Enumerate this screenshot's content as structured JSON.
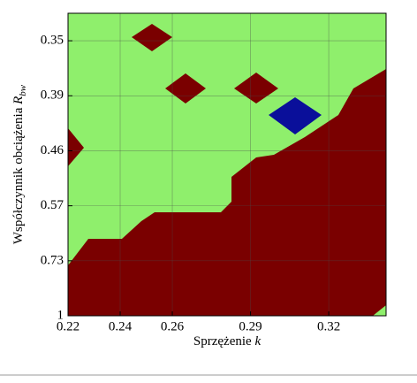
{
  "chart_data": {
    "type": "region",
    "xlabel": {
      "text": "Sprzężenie",
      "var": "k"
    },
    "ylabel": {
      "text": "Współczynnik obciążenia",
      "var": "R",
      "sub": "bw"
    },
    "xlim": [
      0.22,
      0.342
    ],
    "xticks": [
      0.22,
      0.24,
      0.26,
      0.29,
      0.32
    ],
    "yscale": "ordinal",
    "yticks": [
      0.35,
      0.39,
      0.46,
      0.57,
      0.73,
      1
    ],
    "grid": true
  }
}
